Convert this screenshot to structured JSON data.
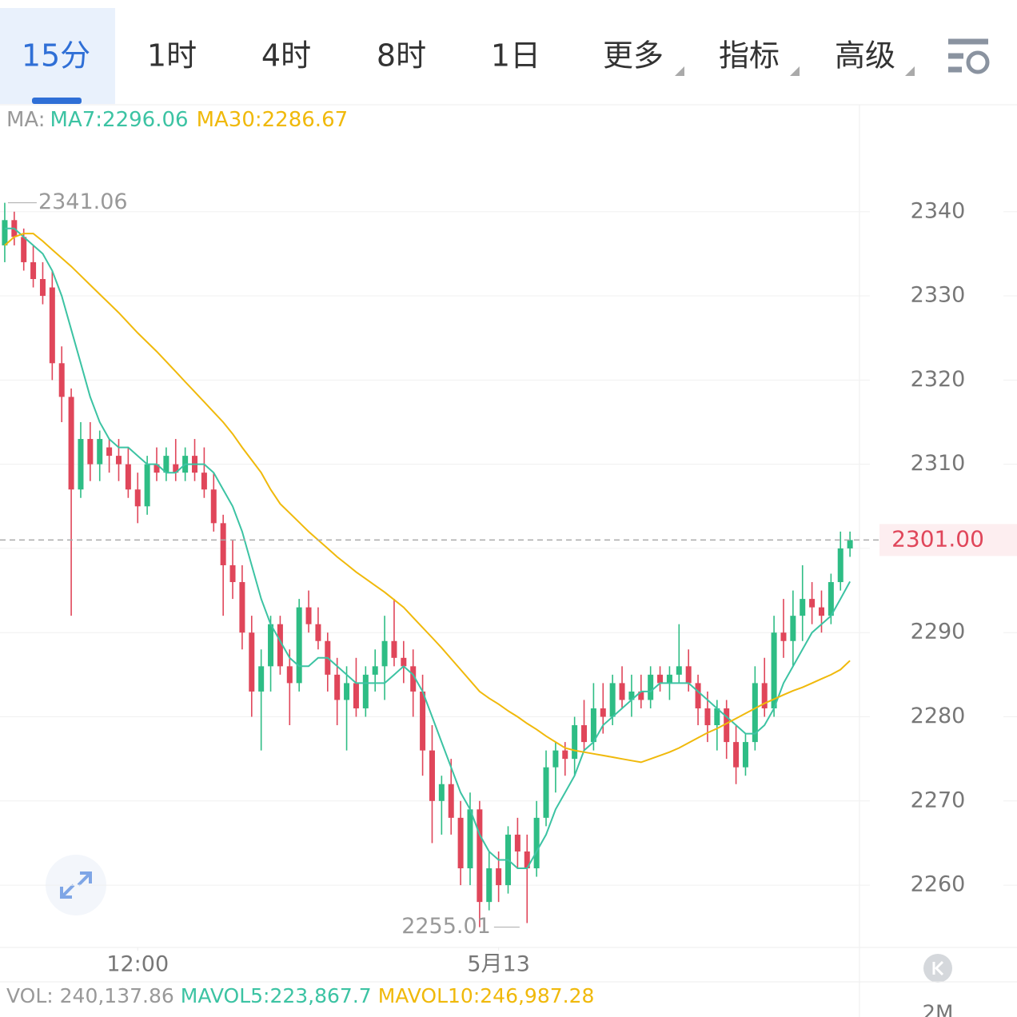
{
  "tabs": [
    "15分",
    "1时",
    "4时",
    "8时",
    "1日",
    "更多",
    "指标",
    "高级"
  ],
  "chart_data": {
    "type": "candlestick",
    "ma_prefix": "MA:",
    "xlim": [
      -0.5,
      90
    ],
    "xticks": [
      {
        "value": 14,
        "label": "12:00"
      },
      {
        "value": 52,
        "label": "5月13"
      }
    ],
    "ylim": [
      2252.6,
      2352.8
    ],
    "yticks": [
      2260,
      2270,
      2280,
      2290,
      2300,
      2310,
      2320,
      2330,
      2340
    ],
    "grid": true,
    "up_color": "#2ebd85",
    "down_color": "#e0465a",
    "open": [
      2336,
      2339,
      2337,
      2334,
      2332,
      2331,
      2322,
      2318,
      2307,
      2313,
      2310,
      2312,
      2311,
      2310,
      2307,
      2305,
      2310,
      2309,
      2310,
      2309,
      2311,
      2309,
      2307,
      2303,
      2298,
      2296,
      2290,
      2283,
      2286,
      2291,
      2286,
      2284,
      2293,
      2291,
      2289,
      2285,
      2282,
      2284,
      2281,
      2285,
      2286,
      2289,
      2287,
      2286,
      2283,
      2276,
      2270,
      2272,
      2268,
      2262,
      2269,
      2258,
      2262,
      2260,
      2266,
      2264,
      2262,
      2268,
      2274,
      2276,
      2275,
      2279,
      2277,
      2281,
      2280,
      2284,
      2282,
      2283,
      2282,
      2285,
      2284,
      2285,
      2286,
      2284,
      2281,
      2279,
      2281,
      2277,
      2274,
      2277,
      2284,
      2281,
      2290,
      2289,
      2292,
      2294,
      2293,
      2292,
      2296,
      2300
    ],
    "high": [
      2341.06,
      2340,
      2338,
      2336,
      2334,
      2333,
      2324,
      2319,
      2315,
      2315,
      2314,
      2313,
      2313,
      2312,
      2309,
      2311,
      2312,
      2312,
      2313,
      2312,
      2313,
      2312,
      2309,
      2304,
      2301,
      2298,
      2292,
      2288,
      2292,
      2292,
      2288,
      2294,
      2295,
      2293,
      2290,
      2287,
      2286,
      2287,
      2286,
      2288,
      2292,
      2294,
      2289,
      2288,
      2285,
      2279,
      2273,
      2275,
      2270,
      2271,
      2270,
      2264,
      2264,
      2267,
      2268,
      2266,
      2270,
      2276,
      2277,
      2277,
      2280,
      2282,
      2284,
      2284,
      2285,
      2286,
      2285,
      2285,
      2286,
      2286,
      2286,
      2291,
      2288,
      2285,
      2283,
      2282,
      2282,
      2279,
      2278,
      2286,
      2287,
      2292,
      2294,
      2295,
      2298,
      2296,
      2295,
      2297,
      2302,
      2302
    ],
    "low": [
      2334,
      2336,
      2333,
      2331,
      2329,
      2320,
      2315,
      2292,
      2306,
      2308,
      2308,
      2309,
      2308,
      2306,
      2303,
      2304,
      2308,
      2308,
      2308,
      2308,
      2308,
      2306,
      2302,
      2292,
      2294,
      2288,
      2280,
      2276,
      2283,
      2285,
      2279,
      2283,
      2290,
      2288,
      2283,
      2279,
      2276,
      2280,
      2280,
      2283,
      2282,
      2286,
      2284,
      2280,
      2273,
      2265,
      2266,
      2266,
      2260,
      2260,
      2255.01,
      2257,
      2258,
      2259,
      2262,
      2255.5,
      2261,
      2267,
      2271,
      2273,
      2273,
      2276,
      2276,
      2278,
      2279,
      2281,
      2280,
      2281,
      2281,
      2283,
      2282,
      2284,
      2283,
      2279,
      2277,
      2276,
      2275,
      2272,
      2273,
      2276,
      2280,
      2280,
      2287,
      2286,
      2289,
      2291,
      2290,
      2291,
      2295,
      2299
    ],
    "close": [
      2339,
      2337,
      2334,
      2332,
      2330,
      2322,
      2318,
      2307,
      2313,
      2310,
      2313,
      2311,
      2310,
      2307,
      2305,
      2310,
      2309,
      2311,
      2309,
      2311,
      2309,
      2307,
      2303,
      2298,
      2296,
      2290,
      2283,
      2286,
      2291,
      2286,
      2284,
      2293,
      2291,
      2289,
      2285,
      2282,
      2284,
      2281,
      2285,
      2286,
      2289,
      2287,
      2286,
      2283,
      2276,
      2270,
      2272,
      2268,
      2262,
      2269,
      2258,
      2262,
      2260,
      2266,
      2264,
      2262,
      2268,
      2274,
      2276,
      2275,
      2279,
      2277,
      2281,
      2280,
      2284,
      2282,
      2283,
      2282,
      2285,
      2284,
      2285,
      2286,
      2284,
      2281,
      2279,
      2281,
      2277,
      2274,
      2277,
      2284,
      2281,
      2290,
      2289,
      2292,
      2294,
      2293,
      2292,
      2296,
      2300,
      2301
    ],
    "series": [
      {
        "name": "MA7:2296.06",
        "color": "#3cc3a3",
        "values": [
          2338,
          2338,
          2337,
          2336,
          2335,
          2333,
          2330,
          2326,
          2322,
          2318,
          2315,
          2313,
          2312,
          2312,
          2311,
          2310,
          2310,
          2309,
          2309,
          2310,
          2310,
          2310,
          2309,
          2307,
          2305,
          2302,
          2298,
          2294,
          2291,
          2289,
          2287,
          2286,
          2286,
          2287,
          2287,
          2286,
          2285,
          2284,
          2284,
          2284,
          2284,
          2285,
          2286,
          2285,
          2283,
          2280,
          2277,
          2274,
          2271,
          2269,
          2266,
          2264,
          2263,
          2263,
          2262,
          2262,
          2264,
          2266,
          2269,
          2271,
          2273,
          2276,
          2277,
          2279,
          2280,
          2281,
          2282,
          2283,
          2283,
          2284,
          2284,
          2284,
          2284,
          2283,
          2282,
          2281,
          2280,
          2279,
          2278,
          2278,
          2279,
          2281,
          2284,
          2286,
          2288,
          2290,
          2291,
          2292,
          2294,
          2296.06
        ]
      },
      {
        "name": "MA30:2286.67",
        "color": "#f0b90b",
        "values": [
          2336,
          2337,
          2337.4,
          2337.4,
          2336.5,
          2335.5,
          2334.5,
          2333.5,
          2332.4,
          2331.3,
          2330.2,
          2329.1,
          2328,
          2326.8,
          2325.6,
          2324.5,
          2323.4,
          2322.2,
          2321,
          2319.8,
          2318.6,
          2317.4,
          2316.2,
          2315,
          2313.6,
          2312,
          2310.5,
          2309,
          2307,
          2305.3,
          2304.2,
          2303.1,
          2302,
          2301,
          2300,
          2299,
          2298.1,
          2297.2,
          2296.4,
          2295.6,
          2294.8,
          2293.9,
          2293,
          2291.8,
          2290.6,
          2289.4,
          2288.2,
          2286.9,
          2285.6,
          2284.3,
          2283,
          2282.2,
          2281.5,
          2280.7,
          2280,
          2279.2,
          2278.5,
          2277.7,
          2277,
          2276.3,
          2276,
          2275.8,
          2275.6,
          2275.4,
          2275.2,
          2275,
          2274.8,
          2274.6,
          2275,
          2275.4,
          2275.8,
          2276.3,
          2276.9,
          2277.5,
          2278.1,
          2278.6,
          2279.2,
          2279.8,
          2280.4,
          2281,
          2281.6,
          2282.1,
          2282.6,
          2283.1,
          2283.5,
          2284,
          2284.5,
          2285,
          2285.6,
          2286.67
        ]
      }
    ],
    "last_price": {
      "value": 2301,
      "label": "2301.00"
    },
    "volume_labels": [
      "VOL: 240,137.86",
      "MAVOL5:223,867.7",
      "MAVOL10:246,987.28"
    ],
    "volume_axis_label": "2M"
  }
}
